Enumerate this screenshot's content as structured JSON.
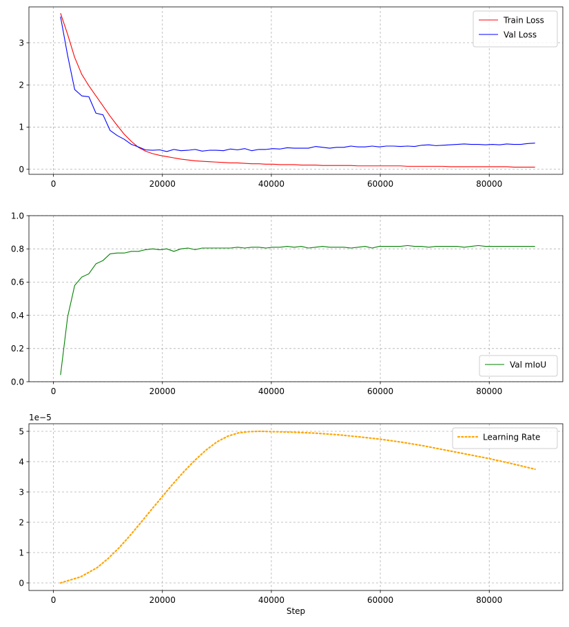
{
  "chart_data": [
    {
      "type": "line",
      "xlabel": "",
      "ylabel": "",
      "xlim": [
        -4500,
        93500
      ],
      "ylim": [
        -0.12,
        3.85
      ],
      "xticks": [
        0,
        20000,
        40000,
        60000,
        80000
      ],
      "xtick_labels": [
        "0",
        "20000",
        "40000",
        "60000",
        "80000"
      ],
      "yticks": [
        0,
        1,
        2,
        3
      ],
      "ytick_labels": [
        "0",
        "1",
        "2",
        "3"
      ],
      "grid": true,
      "legend_position": "top-right",
      "series": [
        {
          "name": "Train Loss",
          "color": "#ff0000",
          "style": "solid",
          "x": [
            1300,
            2600,
            3900,
            5200,
            6500,
            7800,
            9100,
            10400,
            11700,
            13000,
            14300,
            15600,
            16900,
            18200,
            19500,
            20800,
            22100,
            23400,
            24700,
            26000,
            27300,
            28600,
            29900,
            31200,
            32500,
            33800,
            35100,
            36400,
            37700,
            39000,
            40300,
            41600,
            42900,
            44200,
            45500,
            46800,
            48100,
            49400,
            50700,
            52000,
            53300,
            54600,
            55900,
            57200,
            58500,
            59800,
            61100,
            62400,
            63700,
            65000,
            66300,
            67600,
            68900,
            70200,
            71500,
            72800,
            74100,
            75400,
            76700,
            78000,
            79300,
            80600,
            81900,
            83200,
            84500,
            85800,
            87100,
            88400
          ],
          "y": [
            3.7,
            3.2,
            2.65,
            2.25,
            1.98,
            1.74,
            1.5,
            1.26,
            1.04,
            0.83,
            0.66,
            0.52,
            0.43,
            0.37,
            0.33,
            0.3,
            0.27,
            0.24,
            0.22,
            0.2,
            0.19,
            0.18,
            0.17,
            0.16,
            0.15,
            0.15,
            0.14,
            0.13,
            0.13,
            0.12,
            0.12,
            0.11,
            0.11,
            0.11,
            0.1,
            0.1,
            0.1,
            0.09,
            0.09,
            0.09,
            0.09,
            0.09,
            0.08,
            0.08,
            0.08,
            0.08,
            0.08,
            0.08,
            0.08,
            0.07,
            0.07,
            0.07,
            0.07,
            0.07,
            0.07,
            0.06,
            0.06,
            0.06,
            0.06,
            0.06,
            0.06,
            0.06,
            0.06,
            0.06,
            0.05,
            0.05,
            0.05,
            0.05
          ]
        },
        {
          "name": "Val Loss",
          "color": "#0000ff",
          "style": "solid",
          "x": [
            1300,
            2600,
            3900,
            5200,
            6500,
            7800,
            9100,
            10400,
            11700,
            13000,
            14300,
            15600,
            16900,
            18200,
            19500,
            20800,
            22100,
            23400,
            24700,
            26000,
            27300,
            28600,
            29900,
            31200,
            32500,
            33800,
            35100,
            36400,
            37700,
            39000,
            40300,
            41600,
            42900,
            44200,
            45500,
            46800,
            48100,
            49400,
            50700,
            52000,
            53300,
            54600,
            55900,
            57200,
            58500,
            59800,
            61100,
            62400,
            63700,
            65000,
            66300,
            67600,
            68900,
            70200,
            71500,
            72800,
            74100,
            75400,
            76700,
            78000,
            79300,
            80600,
            81900,
            83200,
            84500,
            85800,
            87100,
            88400
          ],
          "y": [
            3.62,
            2.7,
            1.89,
            1.74,
            1.72,
            1.33,
            1.29,
            0.92,
            0.8,
            0.71,
            0.59,
            0.53,
            0.46,
            0.45,
            0.46,
            0.42,
            0.47,
            0.44,
            0.45,
            0.47,
            0.43,
            0.45,
            0.45,
            0.44,
            0.48,
            0.46,
            0.49,
            0.44,
            0.47,
            0.47,
            0.49,
            0.48,
            0.51,
            0.5,
            0.5,
            0.5,
            0.54,
            0.52,
            0.5,
            0.52,
            0.52,
            0.55,
            0.53,
            0.53,
            0.55,
            0.53,
            0.55,
            0.55,
            0.54,
            0.55,
            0.54,
            0.57,
            0.58,
            0.56,
            0.57,
            0.58,
            0.59,
            0.6,
            0.59,
            0.59,
            0.58,
            0.59,
            0.58,
            0.6,
            0.59,
            0.59,
            0.61,
            0.62
          ]
        }
      ]
    },
    {
      "type": "line",
      "xlabel": "",
      "ylabel": "",
      "xlim": [
        -4500,
        93500
      ],
      "ylim": [
        0,
        1
      ],
      "xticks": [
        0,
        20000,
        40000,
        60000,
        80000
      ],
      "xtick_labels": [
        "0",
        "20000",
        "40000",
        "60000",
        "80000"
      ],
      "yticks": [
        0,
        0.2,
        0.4,
        0.6,
        0.8,
        1.0
      ],
      "ytick_labels": [
        "0.0",
        "0.2",
        "0.4",
        "0.6",
        "0.8",
        "1.0"
      ],
      "grid": true,
      "legend_position": "bottom-right",
      "series": [
        {
          "name": "Val mIoU",
          "color": "#008000",
          "style": "solid",
          "x": [
            1300,
            2600,
            3900,
            5200,
            6500,
            7800,
            9100,
            10400,
            11700,
            13000,
            14300,
            15600,
            16900,
            18200,
            19500,
            20800,
            22100,
            23400,
            24700,
            26000,
            27300,
            28600,
            29900,
            31200,
            32500,
            33800,
            35100,
            36400,
            37700,
            39000,
            40300,
            41600,
            42900,
            44200,
            45500,
            46800,
            48100,
            49400,
            50700,
            52000,
            53300,
            54600,
            55900,
            57200,
            58500,
            59800,
            61100,
            62400,
            63700,
            65000,
            66300,
            67600,
            68900,
            70200,
            71500,
            72800,
            74100,
            75400,
            76700,
            78000,
            79300,
            80600,
            81900,
            83200,
            84500,
            85800,
            87100,
            88400
          ],
          "y": [
            0.04,
            0.39,
            0.58,
            0.63,
            0.65,
            0.71,
            0.73,
            0.77,
            0.775,
            0.775,
            0.785,
            0.785,
            0.795,
            0.8,
            0.795,
            0.8,
            0.785,
            0.8,
            0.805,
            0.795,
            0.805,
            0.805,
            0.805,
            0.805,
            0.805,
            0.81,
            0.805,
            0.81,
            0.81,
            0.805,
            0.81,
            0.81,
            0.815,
            0.81,
            0.815,
            0.805,
            0.81,
            0.815,
            0.81,
            0.81,
            0.81,
            0.805,
            0.81,
            0.815,
            0.805,
            0.815,
            0.815,
            0.815,
            0.815,
            0.82,
            0.815,
            0.815,
            0.81,
            0.815,
            0.815,
            0.815,
            0.815,
            0.81,
            0.815,
            0.82,
            0.815,
            0.815,
            0.815,
            0.815,
            0.815,
            0.815,
            0.815,
            0.815
          ]
        }
      ]
    },
    {
      "type": "line",
      "xlabel": "Step",
      "ylabel": "",
      "offset_text": "1e−5",
      "xlim": [
        -4500,
        93500
      ],
      "ylim": [
        -0.25,
        5.25
      ],
      "xticks": [
        0,
        20000,
        40000,
        60000,
        80000
      ],
      "xtick_labels": [
        "0",
        "20000",
        "40000",
        "60000",
        "80000"
      ],
      "yticks": [
        0,
        1,
        2,
        3,
        4,
        5
      ],
      "ytick_labels": [
        "0",
        "1",
        "2",
        "3",
        "4",
        "5"
      ],
      "grid": true,
      "legend_position": "top-right",
      "series": [
        {
          "name": "Learning Rate",
          "color": "#ffa500",
          "style": "dotted",
          "x": [
            1300,
            5000,
            8000,
            10000,
            12000,
            14000,
            16000,
            18000,
            20000,
            22000,
            24000,
            26000,
            28000,
            30000,
            32000,
            34000,
            36000,
            38000,
            40000,
            44000,
            48000,
            52000,
            56000,
            60000,
            64000,
            68000,
            72000,
            76000,
            80000,
            84000,
            88400
          ],
          "y": [
            0.0,
            0.2,
            0.5,
            0.8,
            1.15,
            1.55,
            1.98,
            2.42,
            2.85,
            3.28,
            3.68,
            4.05,
            4.38,
            4.65,
            4.84,
            4.95,
            4.99,
            5.0,
            4.99,
            4.97,
            4.94,
            4.89,
            4.82,
            4.74,
            4.64,
            4.52,
            4.38,
            4.24,
            4.1,
            3.94,
            3.75
          ]
        }
      ]
    }
  ]
}
